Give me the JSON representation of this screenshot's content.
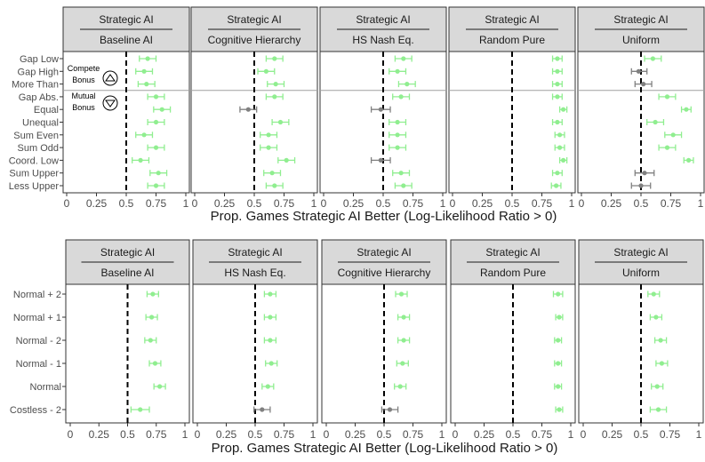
{
  "chart_data": [
    {
      "type": "scatter",
      "subtype": "point-range facets",
      "xlabel": "Prop. Games Strategic AI Better (Log-Likelihood Ratio > 0)",
      "xlim": [
        0,
        1
      ],
      "xticks": [
        0,
        0.25,
        0.5,
        0.75,
        1
      ],
      "xtick_labels": [
        "0",
        "0.25",
        "0.5",
        "0.75",
        "1"
      ],
      "reference_x": 0.5,
      "categories": [
        "Gap Low",
        "Gap High",
        "More Than",
        "Gap Abs.",
        "Equal",
        "Unequal",
        "Sum Even",
        "Sum Odd",
        "Coord. Low",
        "Sum Upper",
        "Less Upper"
      ],
      "group_separator_after_index": 2,
      "annotations": [
        {
          "lines": [
            "Compete",
            "Bonus"
          ],
          "icon": "triangle-up-circle-icon",
          "panel": 0
        },
        {
          "lines": [
            "Mutual",
            "Bonus"
          ],
          "icon": "triangle-down-circle-icon",
          "panel": 0
        }
      ],
      "colors": {
        "significant": "#90ee90",
        "not_significant": "#808080"
      },
      "panels": [
        {
          "strip_top": "Strategic AI",
          "strip_bottom": "Baseline AI",
          "points": [
            {
              "mean": 0.68,
              "lo": 0.61,
              "hi": 0.75,
              "sig": true
            },
            {
              "mean": 0.65,
              "lo": 0.58,
              "hi": 0.72,
              "sig": true
            },
            {
              "mean": 0.67,
              "lo": 0.6,
              "hi": 0.74,
              "sig": true
            },
            {
              "mean": 0.75,
              "lo": 0.68,
              "hi": 0.82,
              "sig": true
            },
            {
              "mean": 0.8,
              "lo": 0.73,
              "hi": 0.87,
              "sig": true
            },
            {
              "mean": 0.75,
              "lo": 0.68,
              "hi": 0.82,
              "sig": true
            },
            {
              "mean": 0.65,
              "lo": 0.58,
              "hi": 0.72,
              "sig": true
            },
            {
              "mean": 0.75,
              "lo": 0.68,
              "hi": 0.82,
              "sig": true
            },
            {
              "mean": 0.62,
              "lo": 0.55,
              "hi": 0.69,
              "sig": true
            },
            {
              "mean": 0.77,
              "lo": 0.7,
              "hi": 0.84,
              "sig": true
            },
            {
              "mean": 0.75,
              "lo": 0.68,
              "hi": 0.82,
              "sig": true
            }
          ]
        },
        {
          "strip_top": "Strategic AI",
          "strip_bottom": "Cognitive Hierarchy",
          "points": [
            {
              "mean": 0.67,
              "lo": 0.6,
              "hi": 0.74,
              "sig": true
            },
            {
              "mean": 0.6,
              "lo": 0.53,
              "hi": 0.67,
              "sig": true
            },
            {
              "mean": 0.68,
              "lo": 0.61,
              "hi": 0.75,
              "sig": true
            },
            {
              "mean": 0.67,
              "lo": 0.6,
              "hi": 0.74,
              "sig": true
            },
            {
              "mean": 0.45,
              "lo": 0.38,
              "hi": 0.52,
              "sig": false
            },
            {
              "mean": 0.72,
              "lo": 0.65,
              "hi": 0.79,
              "sig": true
            },
            {
              "mean": 0.62,
              "lo": 0.55,
              "hi": 0.69,
              "sig": true
            },
            {
              "mean": 0.62,
              "lo": 0.55,
              "hi": 0.69,
              "sig": true
            },
            {
              "mean": 0.77,
              "lo": 0.7,
              "hi": 0.84,
              "sig": true
            },
            {
              "mean": 0.65,
              "lo": 0.58,
              "hi": 0.72,
              "sig": true
            },
            {
              "mean": 0.67,
              "lo": 0.6,
              "hi": 0.74,
              "sig": true
            }
          ]
        },
        {
          "strip_top": "Strategic AI",
          "strip_bottom": "HS Nash Eq.",
          "points": [
            {
              "mean": 0.67,
              "lo": 0.6,
              "hi": 0.74,
              "sig": true
            },
            {
              "mean": 0.62,
              "lo": 0.55,
              "hi": 0.69,
              "sig": true
            },
            {
              "mean": 0.7,
              "lo": 0.63,
              "hi": 0.77,
              "sig": true
            },
            {
              "mean": 0.65,
              "lo": 0.58,
              "hi": 0.72,
              "sig": true
            },
            {
              "mean": 0.48,
              "lo": 0.4,
              "hi": 0.56,
              "sig": false
            },
            {
              "mean": 0.62,
              "lo": 0.55,
              "hi": 0.69,
              "sig": true
            },
            {
              "mean": 0.62,
              "lo": 0.55,
              "hi": 0.69,
              "sig": true
            },
            {
              "mean": 0.62,
              "lo": 0.55,
              "hi": 0.69,
              "sig": true
            },
            {
              "mean": 0.48,
              "lo": 0.4,
              "hi": 0.56,
              "sig": false
            },
            {
              "mean": 0.65,
              "lo": 0.58,
              "hi": 0.72,
              "sig": true
            },
            {
              "mean": 0.67,
              "lo": 0.6,
              "hi": 0.74,
              "sig": true
            }
          ]
        },
        {
          "strip_top": "Strategic AI",
          "strip_bottom": "Random Pure",
          "points": [
            {
              "mean": 0.88,
              "lo": 0.84,
              "hi": 0.92,
              "sig": true
            },
            {
              "mean": 0.88,
              "lo": 0.84,
              "hi": 0.92,
              "sig": true
            },
            {
              "mean": 0.88,
              "lo": 0.84,
              "hi": 0.92,
              "sig": true
            },
            {
              "mean": 0.88,
              "lo": 0.84,
              "hi": 0.92,
              "sig": true
            },
            {
              "mean": 0.93,
              "lo": 0.9,
              "hi": 0.96,
              "sig": true
            },
            {
              "mean": 0.88,
              "lo": 0.84,
              "hi": 0.92,
              "sig": true
            },
            {
              "mean": 0.9,
              "lo": 0.86,
              "hi": 0.94,
              "sig": true
            },
            {
              "mean": 0.9,
              "lo": 0.86,
              "hi": 0.94,
              "sig": true
            },
            {
              "mean": 0.93,
              "lo": 0.9,
              "hi": 0.96,
              "sig": true
            },
            {
              "mean": 0.88,
              "lo": 0.84,
              "hi": 0.92,
              "sig": true
            },
            {
              "mean": 0.87,
              "lo": 0.83,
              "hi": 0.91,
              "sig": true
            }
          ]
        },
        {
          "strip_top": "Strategic AI",
          "strip_bottom": "Uniform",
          "points": [
            {
              "mean": 0.6,
              "lo": 0.53,
              "hi": 0.67,
              "sig": true
            },
            {
              "mean": 0.48,
              "lo": 0.42,
              "hi": 0.55,
              "sig": false
            },
            {
              "mean": 0.52,
              "lo": 0.45,
              "hi": 0.59,
              "sig": false
            },
            {
              "mean": 0.72,
              "lo": 0.65,
              "hi": 0.79,
              "sig": true
            },
            {
              "mean": 0.88,
              "lo": 0.84,
              "hi": 0.92,
              "sig": true
            },
            {
              "mean": 0.62,
              "lo": 0.55,
              "hi": 0.69,
              "sig": true
            },
            {
              "mean": 0.77,
              "lo": 0.7,
              "hi": 0.84,
              "sig": true
            },
            {
              "mean": 0.72,
              "lo": 0.65,
              "hi": 0.79,
              "sig": true
            },
            {
              "mean": 0.9,
              "lo": 0.86,
              "hi": 0.94,
              "sig": true
            },
            {
              "mean": 0.53,
              "lo": 0.45,
              "hi": 0.61,
              "sig": false
            },
            {
              "mean": 0.5,
              "lo": 0.42,
              "hi": 0.58,
              "sig": false
            }
          ]
        }
      ]
    },
    {
      "type": "scatter",
      "subtype": "point-range facets",
      "xlabel": "Prop. Games Strategic AI Better (Log-Likelihood Ratio > 0)",
      "xlim": [
        0,
        1
      ],
      "xticks": [
        0,
        0.25,
        0.5,
        0.75,
        1
      ],
      "xtick_labels": [
        "0",
        "0.25",
        "0.5",
        "0.75",
        "1"
      ],
      "reference_x": 0.5,
      "categories": [
        "Normal + 2",
        "Normal + 1",
        "Normal - 2",
        "Normal - 1",
        "Normal",
        "Costless - 2"
      ],
      "colors": {
        "significant": "#90ee90",
        "not_significant": "#808080"
      },
      "panels": [
        {
          "strip_top": "Strategic AI",
          "strip_bottom": "Baseline AI",
          "points": [
            {
              "mean": 0.72,
              "lo": 0.67,
              "hi": 0.77,
              "sig": true
            },
            {
              "mean": 0.71,
              "lo": 0.66,
              "hi": 0.76,
              "sig": true
            },
            {
              "mean": 0.7,
              "lo": 0.65,
              "hi": 0.75,
              "sig": true
            },
            {
              "mean": 0.74,
              "lo": 0.69,
              "hi": 0.79,
              "sig": true
            },
            {
              "mean": 0.78,
              "lo": 0.73,
              "hi": 0.83,
              "sig": true
            },
            {
              "mean": 0.61,
              "lo": 0.53,
              "hi": 0.69,
              "sig": true
            }
          ]
        },
        {
          "strip_top": "Strategic AI",
          "strip_bottom": "HS Nash Eq.",
          "points": [
            {
              "mean": 0.63,
              "lo": 0.58,
              "hi": 0.68,
              "sig": true
            },
            {
              "mean": 0.63,
              "lo": 0.58,
              "hi": 0.68,
              "sig": true
            },
            {
              "mean": 0.63,
              "lo": 0.58,
              "hi": 0.68,
              "sig": true
            },
            {
              "mean": 0.64,
              "lo": 0.59,
              "hi": 0.69,
              "sig": true
            },
            {
              "mean": 0.61,
              "lo": 0.56,
              "hi": 0.66,
              "sig": true
            },
            {
              "mean": 0.56,
              "lo": 0.49,
              "hi": 0.63,
              "sig": false
            }
          ]
        },
        {
          "strip_top": "Strategic AI",
          "strip_bottom": "Cognitive Hierarchy",
          "points": [
            {
              "mean": 0.65,
              "lo": 0.6,
              "hi": 0.7,
              "sig": true
            },
            {
              "mean": 0.67,
              "lo": 0.62,
              "hi": 0.72,
              "sig": true
            },
            {
              "mean": 0.67,
              "lo": 0.62,
              "hi": 0.72,
              "sig": true
            },
            {
              "mean": 0.66,
              "lo": 0.61,
              "hi": 0.71,
              "sig": true
            },
            {
              "mean": 0.64,
              "lo": 0.59,
              "hi": 0.69,
              "sig": true
            },
            {
              "mean": 0.55,
              "lo": 0.48,
              "hi": 0.62,
              "sig": false
            }
          ]
        },
        {
          "strip_top": "Strategic AI",
          "strip_bottom": "Random Pure",
          "points": [
            {
              "mean": 0.89,
              "lo": 0.85,
              "hi": 0.93,
              "sig": true
            },
            {
              "mean": 0.9,
              "lo": 0.87,
              "hi": 0.93,
              "sig": true
            },
            {
              "mean": 0.89,
              "lo": 0.86,
              "hi": 0.92,
              "sig": true
            },
            {
              "mean": 0.89,
              "lo": 0.86,
              "hi": 0.92,
              "sig": true
            },
            {
              "mean": 0.89,
              "lo": 0.86,
              "hi": 0.92,
              "sig": true
            },
            {
              "mean": 0.9,
              "lo": 0.87,
              "hi": 0.93,
              "sig": true
            }
          ]
        },
        {
          "strip_top": "Strategic AI",
          "strip_bottom": "Uniform",
          "points": [
            {
              "mean": 0.61,
              "lo": 0.56,
              "hi": 0.66,
              "sig": true
            },
            {
              "mean": 0.63,
              "lo": 0.58,
              "hi": 0.68,
              "sig": true
            },
            {
              "mean": 0.67,
              "lo": 0.62,
              "hi": 0.72,
              "sig": true
            },
            {
              "mean": 0.68,
              "lo": 0.63,
              "hi": 0.73,
              "sig": true
            },
            {
              "mean": 0.64,
              "lo": 0.59,
              "hi": 0.69,
              "sig": true
            },
            {
              "mean": 0.65,
              "lo": 0.58,
              "hi": 0.72,
              "sig": true
            }
          ]
        }
      ]
    }
  ]
}
